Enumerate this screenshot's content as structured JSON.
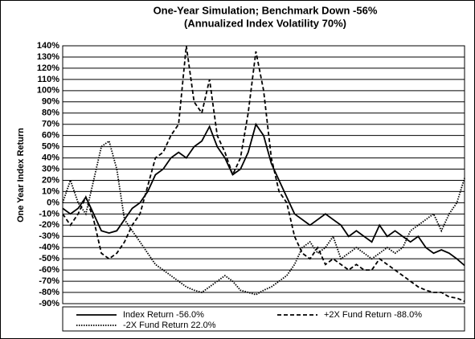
{
  "chart_data": {
    "type": "line",
    "title": "One-Year Simulation; Benchmark Down -56%",
    "subtitle": "(Annualized Index Volatility 70%)",
    "y_label": "One Year Index Return",
    "ylim": [
      -90,
      140
    ],
    "yticks": [
      {
        "value": -90,
        "label": "-90%"
      },
      {
        "value": -80,
        "label": "-80%"
      },
      {
        "value": -70,
        "label": "-70%"
      },
      {
        "value": -60,
        "label": "-60%"
      },
      {
        "value": -50,
        "label": "-50%"
      },
      {
        "value": -40,
        "label": "-40%"
      },
      {
        "value": -30,
        "label": "-30%"
      },
      {
        "value": -20,
        "label": "-20%"
      },
      {
        "value": -10,
        "label": "-10%"
      },
      {
        "value": 0,
        "label": "0%"
      },
      {
        "value": 10,
        "label": "10%"
      },
      {
        "value": 20,
        "label": "20%"
      },
      {
        "value": 30,
        "label": "30%"
      },
      {
        "value": 40,
        "label": "40%"
      },
      {
        "value": 50,
        "label": "50%"
      },
      {
        "value": 60,
        "label": "60%"
      },
      {
        "value": 70,
        "label": "70%"
      },
      {
        "value": 80,
        "label": "80%"
      },
      {
        "value": 90,
        "label": "90%"
      },
      {
        "value": 100,
        "label": "100%"
      },
      {
        "value": 110,
        "label": "110%"
      },
      {
        "value": 120,
        "label": "120%"
      },
      {
        "value": 130,
        "label": "130%"
      },
      {
        "value": 140,
        "label": "140%"
      }
    ],
    "grid": true,
    "series": [
      {
        "name": "Index Return  -56.0%",
        "color": "#000000",
        "dash": "solid",
        "values": [
          -5,
          -10,
          -5,
          5,
          -10,
          -25,
          -27,
          -25,
          -15,
          -5,
          0,
          10,
          25,
          30,
          40,
          45,
          40,
          50,
          55,
          68,
          50,
          40,
          25,
          30,
          45,
          70,
          60,
          35,
          20,
          5,
          -10,
          -15,
          -20,
          -15,
          -10,
          -15,
          -20,
          -30,
          -25,
          -30,
          -35,
          -20,
          -30,
          -25,
          -30,
          -35,
          -30,
          -40,
          -45,
          -42,
          -45,
          -50,
          -56
        ]
      },
      {
        "name": "+2X Fund Return  -88.0%",
        "color": "#000000",
        "dash": "dashed",
        "values": [
          -10,
          -20,
          -10,
          5,
          -15,
          -45,
          -50,
          -45,
          -35,
          -20,
          -10,
          15,
          40,
          45,
          60,
          70,
          140,
          90,
          80,
          110,
          60,
          45,
          25,
          40,
          80,
          135,
          100,
          40,
          10,
          0,
          -30,
          -45,
          -50,
          -40,
          -55,
          -50,
          -55,
          -60,
          -55,
          -60,
          -60,
          -50,
          -55,
          -60,
          -65,
          -70,
          -75,
          -78,
          -80,
          -80,
          -84,
          -85,
          -88
        ]
      },
      {
        "name": "-2X Fund Return  22.0%",
        "color": "#000000",
        "dash": "dotted",
        "values": [
          0,
          20,
          0,
          -10,
          20,
          50,
          55,
          30,
          -15,
          -25,
          -35,
          -45,
          -55,
          -60,
          -65,
          -70,
          -75,
          -78,
          -80,
          -75,
          -70,
          -65,
          -70,
          -78,
          -80,
          -82,
          -78,
          -75,
          -70,
          -65,
          -55,
          -40,
          -35,
          -45,
          -40,
          -30,
          -50,
          -45,
          -40,
          -45,
          -50,
          -45,
          -40,
          -45,
          -40,
          -25,
          -20,
          -15,
          -10,
          -25,
          -10,
          0,
          22
        ]
      }
    ]
  }
}
